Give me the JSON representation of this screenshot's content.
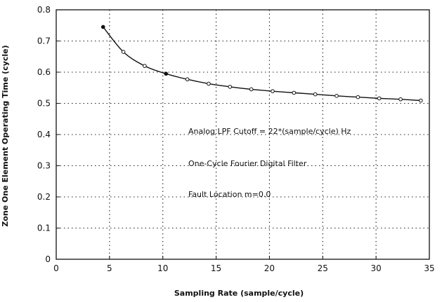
{
  "chart_data": {
    "type": "line",
    "title": "",
    "xlabel": "Sampling Rate (sample/cycle)",
    "ylabel": "Zone One Element Operating Time (cycle)",
    "xlim": [
      0,
      35
    ],
    "ylim": [
      0,
      0.8
    ],
    "x_ticks": [
      0,
      5,
      10,
      15,
      20,
      25,
      30,
      35
    ],
    "x_tick_labels": [
      "0",
      "5",
      "10",
      "15",
      "20",
      "25",
      "30",
      "35"
    ],
    "y_ticks": [
      0,
      0.1,
      0.2,
      0.3,
      0.4,
      0.5,
      0.6,
      0.7,
      0.8
    ],
    "y_tick_labels": [
      "0",
      "0.1",
      "0.2",
      "0.3",
      "0.4",
      "0.5",
      "0.6",
      "0.7",
      "0.8"
    ],
    "grid": true,
    "grid_style": "dotted",
    "series": [
      {
        "x": [
          4.4,
          6.3,
          8.3,
          10.3,
          12.3,
          14.3,
          16.3,
          18.3,
          20.3,
          22.3,
          24.3,
          26.3,
          28.3,
          30.3,
          32.3,
          34.2
        ],
        "values": [
          0.745,
          0.665,
          0.62,
          0.595,
          0.577,
          0.563,
          0.553,
          0.545,
          0.539,
          0.534,
          0.529,
          0.524,
          0.52,
          0.516,
          0.513,
          0.509
        ],
        "markers": [
          true,
          true,
          true,
          true,
          true,
          true,
          true,
          true,
          true,
          true,
          true,
          true,
          true,
          true,
          true,
          true
        ],
        "open_markers": [
          false,
          true,
          true,
          false,
          true,
          true,
          true,
          true,
          true,
          true,
          true,
          true,
          true,
          true,
          true,
          true
        ],
        "color": "#111111"
      }
    ],
    "annotations": [
      "Analog LPF Cutoff = 22*(sample/cycle) Hz",
      "One-Cycle Fourier Digital Filter",
      "Fault Location m=0.0"
    ]
  }
}
